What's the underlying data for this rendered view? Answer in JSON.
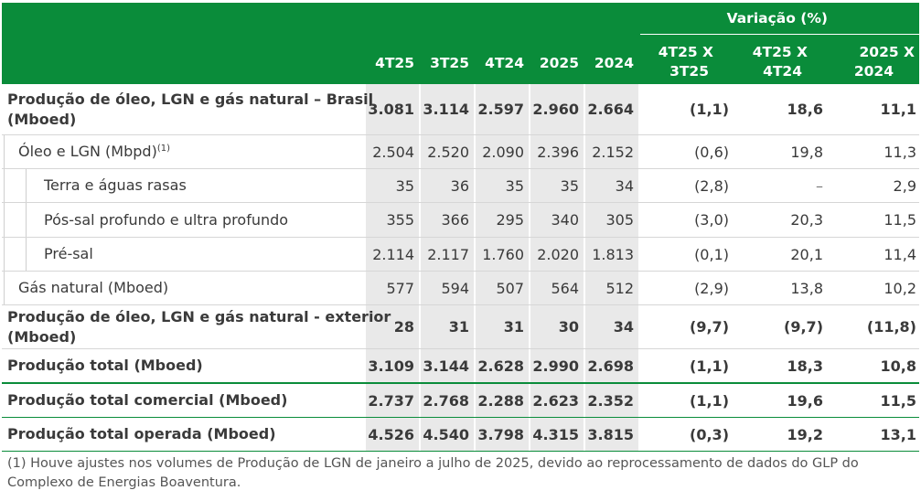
{
  "header": {
    "variation_title": "Variação (%)",
    "columns": [
      "4T25",
      "3T25",
      "4T24",
      "2025",
      "2024"
    ],
    "var_columns": [
      {
        "line1": "4T25 X",
        "line2": "3T25"
      },
      {
        "line1": "4T25 X",
        "line2": "4T24"
      },
      {
        "line1": "2025 X",
        "line2": "2024"
      }
    ]
  },
  "rows": [
    {
      "label_line1": "Produção de óleo, LGN e gás natural – Brasil",
      "label_line2": "(Mboed)",
      "values": [
        "3.081",
        "3.114",
        "2.597",
        "2.960",
        "2.664",
        "(1,1)",
        "18,6",
        "11,1"
      ]
    },
    {
      "label": "Óleo e LGN (Mbpd)",
      "label_sup": "(1)",
      "values": [
        "2.504",
        "2.520",
        "2.090",
        "2.396",
        "2.152",
        "(0,6)",
        "19,8",
        "11,3"
      ]
    },
    {
      "label": "Terra e águas rasas",
      "values": [
        "35",
        "36",
        "35",
        "35",
        "34",
        "(2,8)",
        "–",
        "2,9"
      ]
    },
    {
      "label": "Pós-sal profundo e ultra profundo",
      "values": [
        "355",
        "366",
        "295",
        "340",
        "305",
        "(3,0)",
        "20,3",
        "11,5"
      ]
    },
    {
      "label": "Pré-sal",
      "values": [
        "2.114",
        "2.117",
        "1.760",
        "2.020",
        "1.813",
        "(0,1)",
        "20,1",
        "11,4"
      ]
    },
    {
      "label": "Gás natural (Mboed)",
      "values": [
        "577",
        "594",
        "507",
        "564",
        "512",
        "(2,9)",
        "13,8",
        "10,2"
      ]
    },
    {
      "label_line1": "Produção de óleo, LGN e gás natural - exterior",
      "label_line2": "(Mboed)",
      "values": [
        "28",
        "31",
        "31",
        "30",
        "34",
        "(9,7)",
        "(9,7)",
        "(11,8)"
      ]
    },
    {
      "label": "Produção total (Mboed)",
      "values": [
        "3.109",
        "3.144",
        "2.628",
        "2.990",
        "2.698",
        "(1,1)",
        "18,3",
        "10,8"
      ]
    },
    {
      "label": "Produção total comercial (Mboed)",
      "values": [
        "2.737",
        "2.768",
        "2.288",
        "2.623",
        "2.352",
        "(1,1)",
        "19,6",
        "11,5"
      ]
    },
    {
      "label": "Produção total operada (Mboed)",
      "values": [
        "4.526",
        "4.540",
        "3.798",
        "4.315",
        "3.815",
        "(0,3)",
        "19,2",
        "13,1"
      ]
    }
  ],
  "footnote": "(1) Houve ajustes nos volumes de Produção de LGN de janeiro a julho de 2025, devido ao reprocessamento de dados do GLP do Complexo de Energias Boaventura.",
  "colors": {
    "accent": "#0a8c3a",
    "band": "#e9e9e9"
  }
}
